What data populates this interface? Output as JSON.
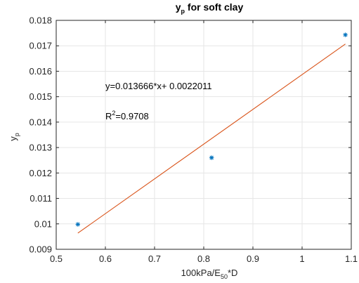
{
  "chart_data": {
    "type": "scatter",
    "title": {
      "main": "y",
      "sub": "p",
      "rest": " for soft clay"
    },
    "xlabel": {
      "pre": "100kPa/E",
      "sub": "50",
      "post": "*D"
    },
    "ylabel": {
      "main": "y",
      "sub": "p"
    },
    "xlim": [
      0.5,
      1.1
    ],
    "ylim": [
      0.009,
      0.018
    ],
    "xticks": [
      0.5,
      0.6,
      0.7,
      0.8,
      0.9,
      1,
      1.1
    ],
    "xtick_labels": [
      "0.5",
      "0.6",
      "0.7",
      "0.8",
      "0.9",
      "1",
      "1.1"
    ],
    "yticks": [
      0.009,
      0.01,
      0.011,
      0.012,
      0.013,
      0.014,
      0.015,
      0.016,
      0.017,
      0.018
    ],
    "ytick_labels": [
      "0.009",
      "0.01",
      "0.011",
      "0.012",
      "0.013",
      "0.014",
      "0.015",
      "0.016",
      "0.017",
      "0.018"
    ],
    "grid": true,
    "series": [
      {
        "type": "scatter",
        "marker": "*",
        "color": "#0072BD",
        "x": [
          0.544,
          0.816,
          1.088
        ],
        "y": [
          0.00998,
          0.0126,
          0.01743
        ]
      },
      {
        "type": "line",
        "color": "#D95319",
        "x": [
          0.544,
          1.088
        ],
        "y": [
          0.009636,
          0.017071
        ]
      }
    ],
    "annotations": {
      "equation": "y=0.013666*x+ 0.0022011",
      "r2_prefix": "R",
      "r2_sup": "2",
      "r2_value": "=0.9708"
    }
  }
}
